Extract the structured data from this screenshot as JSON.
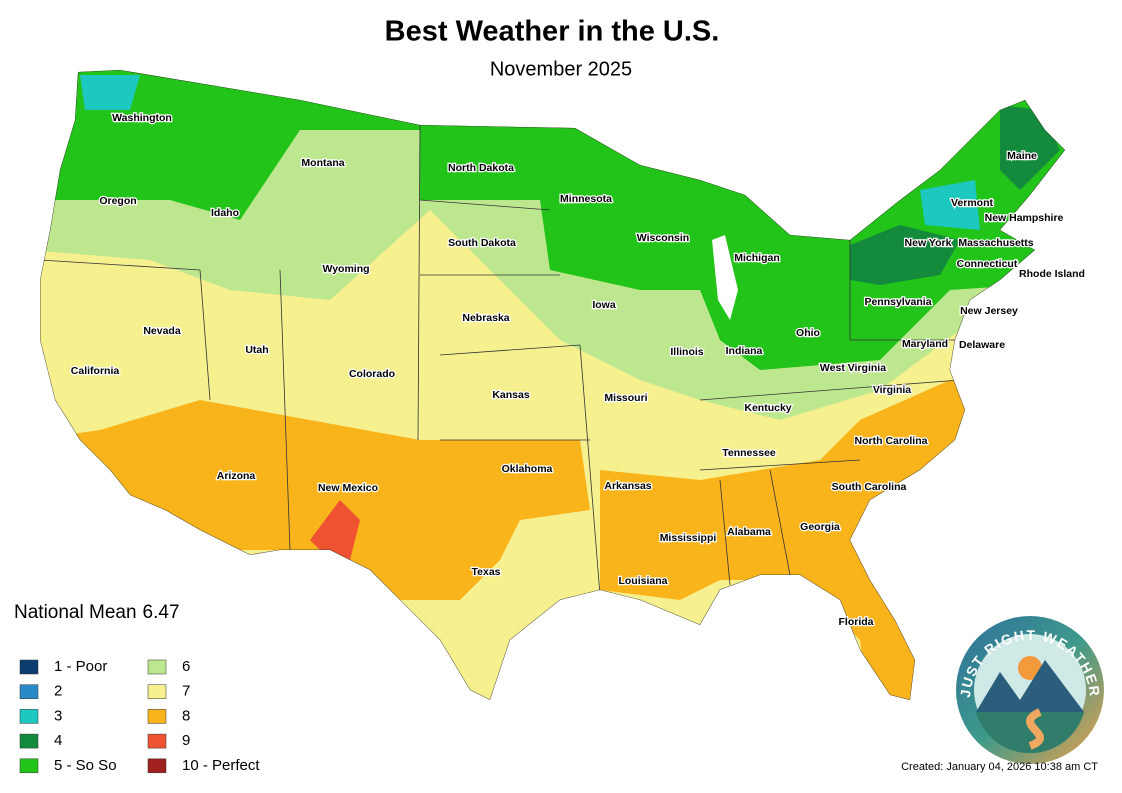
{
  "header": {
    "title": "Best Weather in the U.S.",
    "subtitle": "November 2025"
  },
  "map": {
    "state_labels": [
      "Washington",
      "Oregon",
      "California",
      "Nevada",
      "Idaho",
      "Montana",
      "Wyoming",
      "Utah",
      "Colorado",
      "Arizona",
      "New Mexico",
      "North Dakota",
      "South Dakota",
      "Nebraska",
      "Kansas",
      "Oklahoma",
      "Texas",
      "Minnesota",
      "Iowa",
      "Missouri",
      "Arkansas",
      "Louisiana",
      "Wisconsin",
      "Illinois",
      "Mississippi",
      "Michigan",
      "Indiana",
      "Kentucky",
      "Tennessee",
      "Alabama",
      "Georgia",
      "Florida",
      "Ohio",
      "South Carolina",
      "North Carolina",
      "Virginia",
      "West Virginia",
      "Pennsylvania",
      "Maryland",
      "Delaware",
      "New Jersey",
      "New York",
      "Connecticut",
      "Rhode Island",
      "Massachusetts",
      "Vermont",
      "New Hampshire",
      "Maine"
    ]
  },
  "national_mean": {
    "label": "National Mean",
    "value": 6.47
  },
  "legend": [
    {
      "label": "1 - Poor",
      "color": "#0b3d6e"
    },
    {
      "label": "2",
      "color": "#2a8ac8"
    },
    {
      "label": "3",
      "color": "#1cc8c0"
    },
    {
      "label": "4",
      "color": "#138a3c"
    },
    {
      "label": "5 - So So",
      "color": "#22c41a"
    },
    {
      "label": "6",
      "color": "#bde78f"
    },
    {
      "label": "7",
      "color": "#f6f08f"
    },
    {
      "label": "8",
      "color": "#f9b41c"
    },
    {
      "label": "9",
      "color": "#ee5230"
    },
    {
      "label": "10 - Perfect",
      "color": "#a01f1f"
    }
  ],
  "logo": {
    "text": "JUST RIGHT WEATHER"
  },
  "footer": {
    "created": "Created: January 04, 2026 10:38 am CT"
  }
}
